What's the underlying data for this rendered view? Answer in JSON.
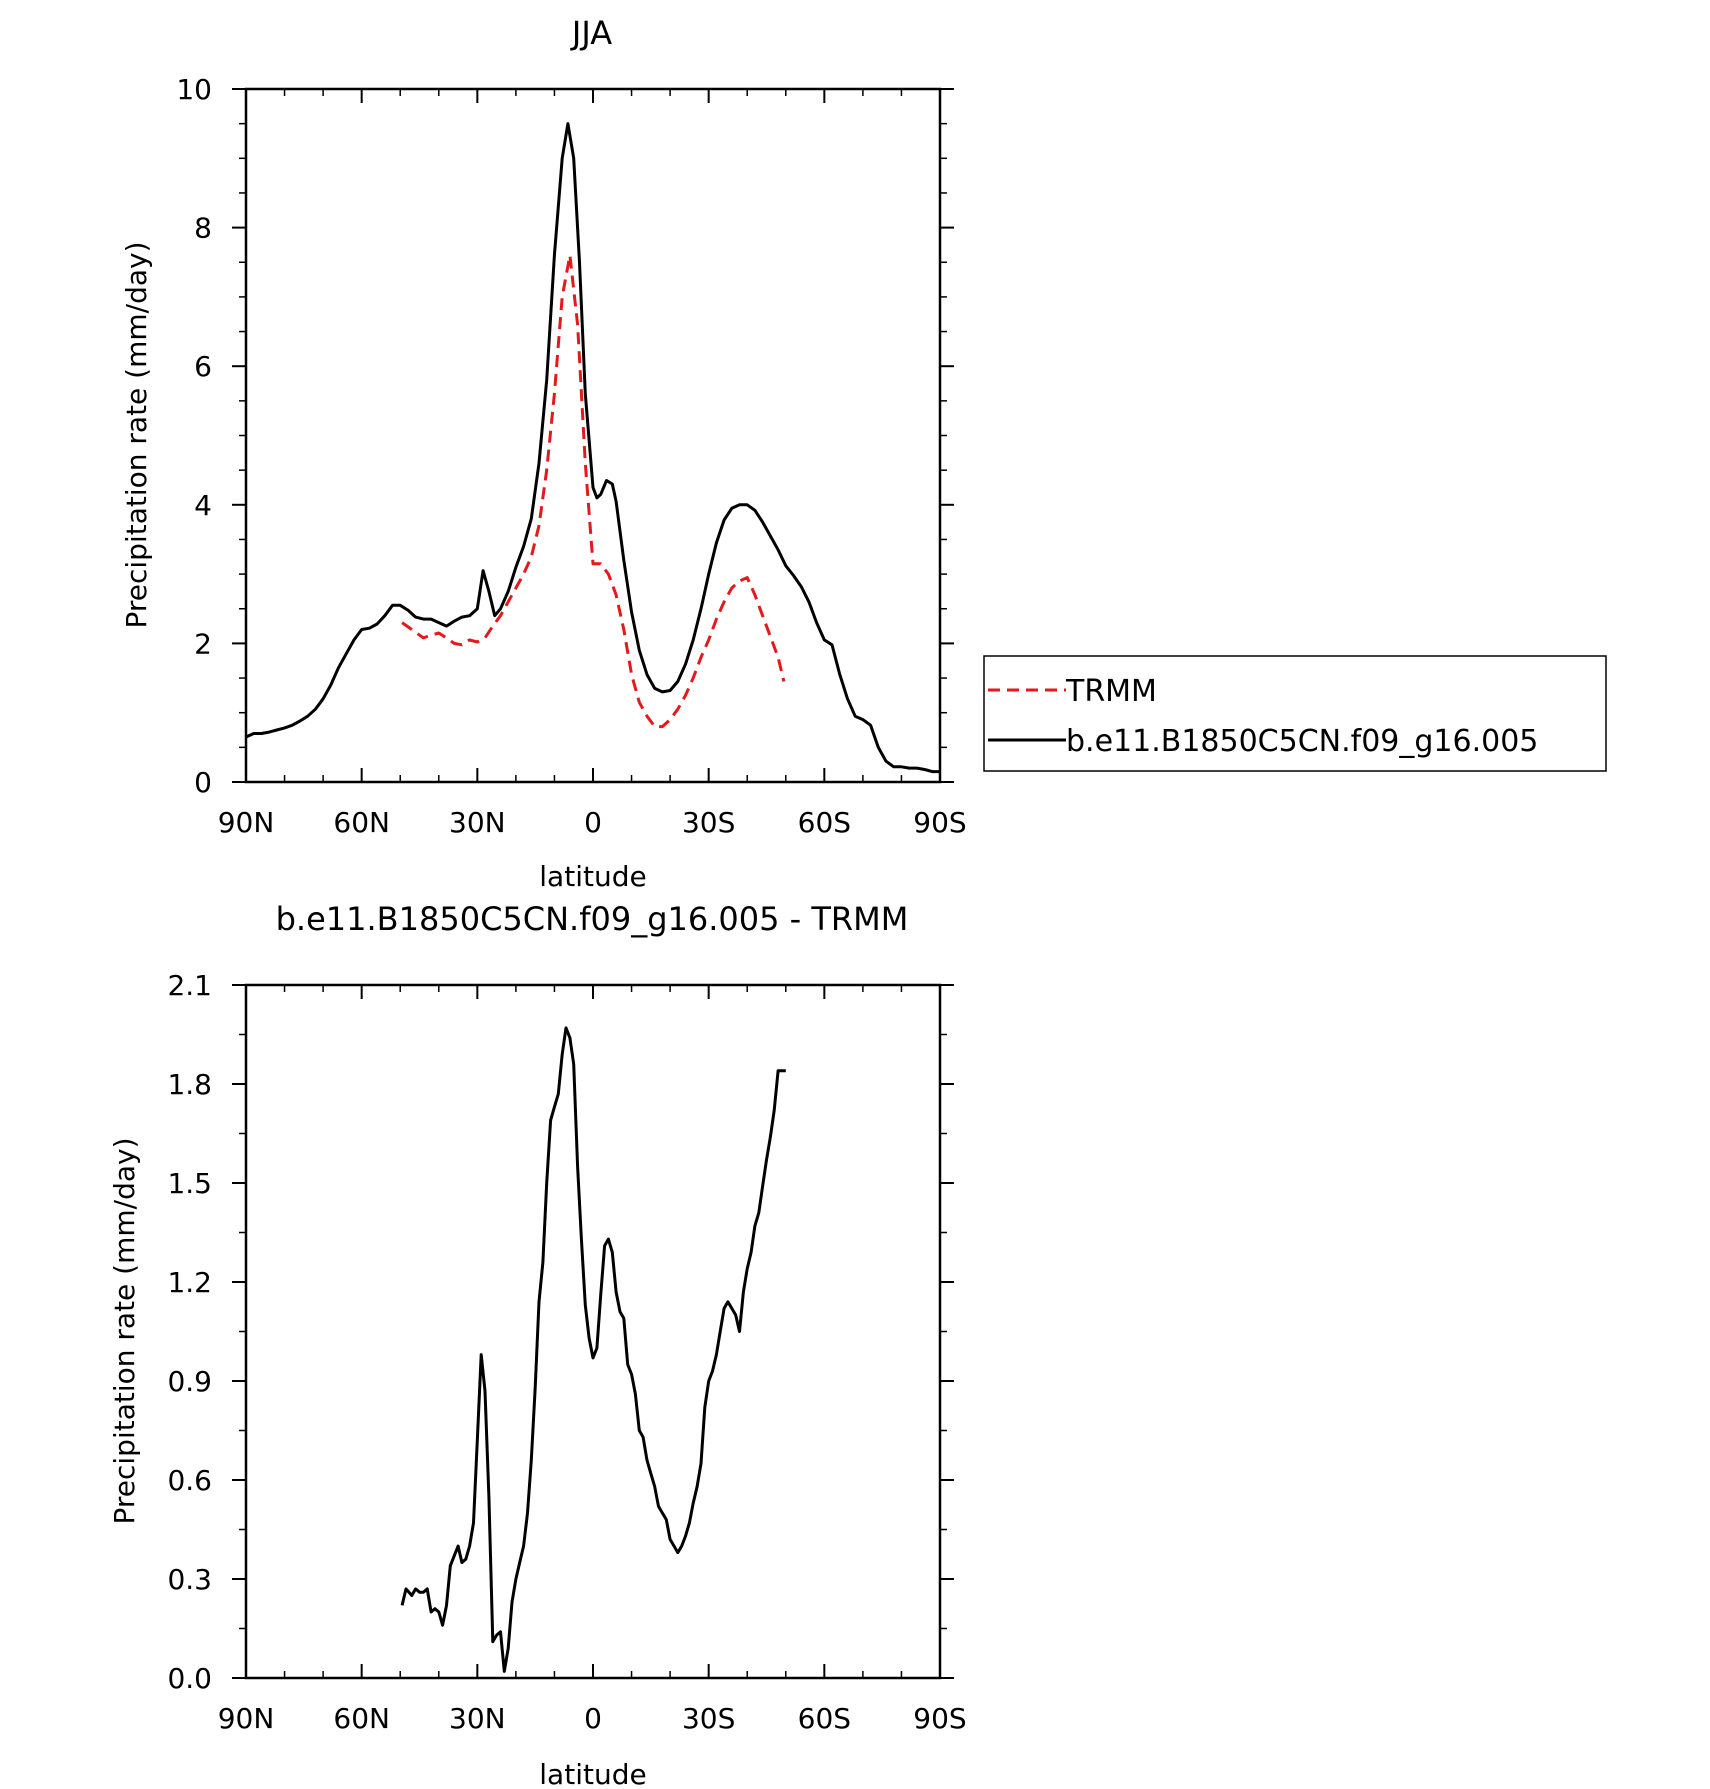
{
  "chart_data": [
    {
      "type": "line",
      "title": "JJA",
      "xlabel": "latitude",
      "ylabel": "Precipitation rate (mm/day)",
      "xlim": [
        90,
        -90
      ],
      "ylim": [
        0,
        10
      ],
      "x_ticks": [
        90,
        60,
        30,
        0,
        -30,
        -60,
        -90
      ],
      "x_tick_labels": [
        "90N",
        "60N",
        "30N",
        "0",
        "30S",
        "60S",
        "90S"
      ],
      "y_ticks": [
        0,
        2,
        4,
        6,
        8,
        10
      ],
      "y_tick_labels": [
        "0",
        "2",
        "4",
        "6",
        "8",
        "10"
      ],
      "grid": false,
      "legend": "outside-right",
      "series": [
        {
          "name": "TRMM",
          "color": "#e31a1c",
          "dash": "dashed",
          "x": [
            49.5,
            47,
            44,
            42,
            40,
            38,
            36,
            34,
            32,
            30,
            28,
            26,
            24,
            22,
            20,
            18,
            16,
            14,
            12,
            10,
            8,
            6,
            4,
            2,
            0,
            -2,
            -4,
            -6,
            -8,
            -10,
            -12,
            -14,
            -16,
            -18,
            -20,
            -22,
            -24,
            -26,
            -28,
            -30,
            -32,
            -34,
            -36,
            -38,
            -40,
            -42,
            -44,
            -46,
            -48,
            -49.5
          ],
          "y": [
            2.3,
            2.2,
            2.08,
            2.12,
            2.15,
            2.08,
            2.0,
            1.98,
            2.05,
            2.02,
            2.08,
            2.25,
            2.4,
            2.6,
            2.8,
            3.0,
            3.25,
            3.7,
            4.5,
            5.6,
            7.0,
            7.6,
            6.6,
            4.6,
            3.15,
            3.15,
            3.0,
            2.7,
            2.2,
            1.55,
            1.15,
            0.95,
            0.8,
            0.8,
            0.9,
            1.05,
            1.25,
            1.5,
            1.8,
            2.05,
            2.35,
            2.6,
            2.8,
            2.9,
            2.95,
            2.7,
            2.4,
            2.1,
            1.8,
            1.45
          ]
        },
        {
          "name": "b.e11.B1850C5CN.f09_g16.005",
          "color": "#000000",
          "dash": "solid",
          "x": [
            90,
            88,
            86,
            84,
            82,
            80,
            78,
            76,
            74,
            72,
            70,
            68,
            66,
            64,
            62,
            60,
            58,
            56,
            54,
            52,
            50,
            48,
            46,
            44,
            42,
            40,
            38,
            36,
            34,
            32,
            30,
            28.5,
            27,
            25.5,
            24,
            22,
            20,
            18,
            16,
            14,
            12,
            10,
            8,
            6.5,
            5,
            3.5,
            2,
            0,
            -1,
            -2,
            -3.5,
            -5,
            -6,
            -8,
            -10,
            -12,
            -14,
            -16,
            -18,
            -20,
            -22,
            -24,
            -26,
            -28,
            -30,
            -32,
            -34,
            -36,
            -38,
            -40,
            -42,
            -44,
            -46,
            -48,
            -50,
            -52,
            -54,
            -56,
            -58,
            -60,
            -62,
            -64,
            -66,
            -68,
            -70,
            -72,
            -74,
            -76,
            -78,
            -80,
            -82,
            -84,
            -86,
            -88,
            -90
          ],
          "y": [
            0.65,
            0.7,
            0.7,
            0.72,
            0.75,
            0.78,
            0.82,
            0.88,
            0.95,
            1.05,
            1.2,
            1.4,
            1.65,
            1.85,
            2.05,
            2.2,
            2.22,
            2.28,
            2.4,
            2.55,
            2.55,
            2.48,
            2.38,
            2.35,
            2.35,
            2.3,
            2.25,
            2.32,
            2.38,
            2.4,
            2.5,
            3.05,
            2.75,
            2.4,
            2.5,
            2.75,
            3.1,
            3.4,
            3.8,
            4.6,
            5.8,
            7.6,
            9.0,
            9.5,
            9.0,
            7.5,
            5.6,
            4.25,
            4.1,
            4.15,
            4.35,
            4.3,
            4.05,
            3.2,
            2.45,
            1.9,
            1.55,
            1.35,
            1.3,
            1.32,
            1.45,
            1.7,
            2.05,
            2.5,
            3.0,
            3.45,
            3.78,
            3.95,
            4.0,
            4.0,
            3.92,
            3.75,
            3.55,
            3.35,
            3.12,
            2.98,
            2.82,
            2.6,
            2.3,
            2.05,
            1.98,
            1.55,
            1.2,
            0.95,
            0.9,
            0.82,
            0.5,
            0.3,
            0.22,
            0.22,
            0.2,
            0.2,
            0.18,
            0.15,
            0.15
          ]
        }
      ]
    },
    {
      "type": "line",
      "title": "b.e11.B1850C5CN.f09_g16.005 - TRMM",
      "xlabel": "latitude",
      "ylabel": "Precipitation rate (mm/day)",
      "xlim": [
        90,
        -90
      ],
      "ylim": [
        0,
        2.1
      ],
      "x_ticks": [
        90,
        60,
        30,
        0,
        -30,
        -60,
        -90
      ],
      "x_tick_labels": [
        "90N",
        "60N",
        "30N",
        "0",
        "30S",
        "60S",
        "90S"
      ],
      "y_ticks": [
        0,
        0.3,
        0.6,
        0.9,
        1.2,
        1.5,
        1.8,
        2.1
      ],
      "y_tick_labels": [
        "0.0",
        "0.3",
        "0.6",
        "0.9",
        "1.2",
        "1.5",
        "1.8",
        "2.1"
      ],
      "grid": false,
      "series": [
        {
          "color": "#000000",
          "dash": "solid",
          "x": [
            49.5,
            48.5,
            47,
            46,
            45,
            44,
            43,
            42,
            41,
            40,
            39,
            38,
            37,
            36,
            35,
            34,
            33,
            32,
            31,
            30,
            29,
            28,
            27,
            26,
            25,
            24,
            23,
            22,
            21,
            20,
            19,
            18,
            17,
            16,
            15,
            14,
            13,
            12,
            11,
            10,
            9,
            8,
            7,
            6,
            5,
            4,
            3,
            2,
            1,
            0,
            -1,
            -2,
            -3,
            -4,
            -5,
            -6,
            -7,
            -8,
            -9,
            -10,
            -11,
            -12,
            -13,
            -14,
            -15,
            -16,
            -17,
            -18,
            -19,
            -20,
            -21,
            -22,
            -23,
            -24,
            -25,
            -26,
            -27,
            -28,
            -29,
            -30,
            -31,
            -32,
            -33,
            -34,
            -35,
            -36,
            -37,
            -38,
            -39,
            -40,
            -41,
            -42,
            -43,
            -44,
            -45,
            -46,
            -47,
            -48,
            -49,
            -50
          ],
          "y": [
            0.22,
            0.27,
            0.25,
            0.27,
            0.26,
            0.26,
            0.27,
            0.2,
            0.21,
            0.2,
            0.16,
            0.22,
            0.34,
            0.37,
            0.4,
            0.35,
            0.36,
            0.4,
            0.47,
            0.72,
            0.98,
            0.87,
            0.55,
            0.11,
            0.13,
            0.14,
            0.02,
            0.09,
            0.23,
            0.3,
            0.35,
            0.4,
            0.5,
            0.66,
            0.88,
            1.14,
            1.26,
            1.5,
            1.69,
            1.73,
            1.77,
            1.89,
            1.97,
            1.94,
            1.86,
            1.55,
            1.33,
            1.13,
            1.03,
            0.97,
            1.0,
            1.16,
            1.31,
            1.33,
            1.29,
            1.17,
            1.11,
            1.09,
            0.95,
            0.92,
            0.86,
            0.75,
            0.73,
            0.66,
            0.62,
            0.58,
            0.52,
            0.5,
            0.48,
            0.42,
            0.4,
            0.38,
            0.4,
            0.43,
            0.47,
            0.53,
            0.58,
            0.65,
            0.82,
            0.9,
            0.93,
            0.98,
            1.05,
            1.12,
            1.14,
            1.12,
            1.1,
            1.05,
            1.17,
            1.24,
            1.29,
            1.37,
            1.41,
            1.49,
            1.57,
            1.64,
            1.72,
            1.84,
            1.84,
            1.84
          ]
        }
      ]
    }
  ]
}
